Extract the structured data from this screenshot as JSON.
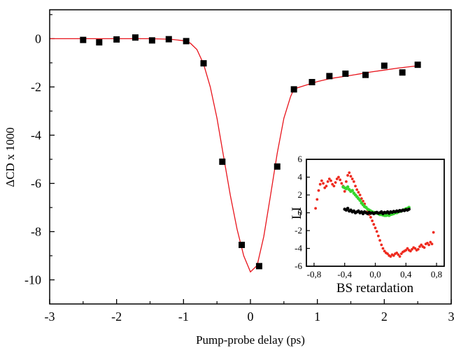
{
  "chart_data": [
    {
      "type": "scatter",
      "xlabel": "Pump-probe delay (ps)",
      "ylabel": "ΔCD x 1000",
      "xlim": [
        -3,
        3
      ],
      "ylim": [
        -11,
        1.2
      ],
      "xticks": [
        -3,
        -2,
        -1,
        0,
        1,
        2,
        3
      ],
      "yticks": [
        0,
        -2,
        -4,
        -6,
        -8,
        -10
      ],
      "x_tick_labels": [
        "-3",
        "-2",
        "-1",
        "0",
        "1",
        "2",
        "3"
      ],
      "y_tick_labels": [
        "0",
        "-2",
        "-4",
        "-6",
        "-8",
        "-10"
      ],
      "series": [
        {
          "marker": "square",
          "color": "#000000",
          "x": [
            -2.5,
            -2.26,
            -2.0,
            -1.72,
            -1.47,
            -1.22,
            -0.96,
            -0.7,
            -0.42,
            -0.13,
            0.13,
            0.4,
            0.65,
            0.92,
            1.18,
            1.42,
            1.72,
            2.0,
            2.27,
            2.5
          ],
          "y": [
            -0.05,
            -0.15,
            -0.03,
            0.05,
            -0.07,
            -0.02,
            -0.1,
            -1.02,
            -5.1,
            -8.55,
            -9.43,
            -5.3,
            -2.1,
            -1.8,
            -1.55,
            -1.45,
            -1.5,
            -1.12,
            -1.4,
            -1.08
          ]
        },
        {
          "type": "line",
          "color": "#e8131b",
          "x": [
            -3.0,
            -2.5,
            -2.0,
            -1.5,
            -1.2,
            -1.0,
            -0.9,
            -0.8,
            -0.7,
            -0.6,
            -0.5,
            -0.4,
            -0.3,
            -0.2,
            -0.1,
            0.0,
            0.1,
            0.2,
            0.3,
            0.4,
            0.5,
            0.6,
            0.65,
            0.8,
            1.0,
            1.2,
            1.5,
            1.8,
            2.0,
            2.2,
            2.5
          ],
          "y": [
            0.0,
            0.0,
            0.0,
            0.0,
            -0.02,
            -0.08,
            -0.18,
            -0.45,
            -1.05,
            -2.0,
            -3.3,
            -4.9,
            -6.5,
            -7.9,
            -9.0,
            -9.67,
            -9.4,
            -8.2,
            -6.5,
            -4.75,
            -3.3,
            -2.4,
            -2.08,
            -1.95,
            -1.78,
            -1.65,
            -1.52,
            -1.38,
            -1.3,
            -1.22,
            -1.12
          ]
        }
      ]
    },
    {
      "type": "scatter",
      "xlabel": "BS retardation",
      "ylabel": "LI",
      "xlim": [
        -0.9,
        0.9
      ],
      "ylim": [
        -6,
        6
      ],
      "xticks": [
        -0.8,
        -0.4,
        0.0,
        0.4,
        0.8
      ],
      "yticks": [
        6,
        4,
        2,
        0,
        -2,
        -4,
        -6
      ],
      "x_tick_labels": [
        "-0,8",
        "-0,4",
        "0,0",
        "0,4",
        "0,8"
      ],
      "y_tick_labels": [
        "6",
        "4",
        "2",
        "0",
        "-2",
        "-4",
        "-6"
      ],
      "series": [
        {
          "color": "#ee2a1e",
          "x": [
            -0.78,
            -0.76,
            -0.74,
            -0.72,
            -0.7,
            -0.68,
            -0.66,
            -0.64,
            -0.62,
            -0.6,
            -0.58,
            -0.56,
            -0.54,
            -0.52,
            -0.5,
            -0.48,
            -0.46,
            -0.44,
            -0.42,
            -0.4,
            -0.38,
            -0.36,
            -0.34,
            -0.32,
            -0.3,
            -0.28,
            -0.26,
            -0.24,
            -0.22,
            -0.2,
            -0.18,
            -0.16,
            -0.14,
            -0.12,
            -0.1,
            -0.08,
            -0.06,
            -0.04,
            -0.02,
            0.0,
            0.02,
            0.04,
            0.06,
            0.08,
            0.1,
            0.12,
            0.14,
            0.16,
            0.18,
            0.2,
            0.22,
            0.24,
            0.26,
            0.28,
            0.3,
            0.32,
            0.34,
            0.36,
            0.38,
            0.4,
            0.42,
            0.44,
            0.46,
            0.48,
            0.5,
            0.52,
            0.54,
            0.56,
            0.58,
            0.6,
            0.62,
            0.64,
            0.66,
            0.68,
            0.7,
            0.72,
            0.74,
            0.76
          ],
          "y": [
            0.5,
            1.5,
            2.5,
            3.2,
            3.6,
            3.3,
            2.8,
            3.0,
            3.5,
            3.8,
            3.6,
            3.2,
            3.0,
            3.4,
            3.8,
            4.0,
            3.7,
            3.3,
            3.0,
            2.4,
            3.5,
            4.2,
            4.5,
            4.1,
            3.8,
            3.5,
            3.0,
            2.6,
            2.3,
            2.0,
            1.6,
            1.3,
            1.0,
            0.6,
            0.2,
            -0.2,
            -0.5,
            -0.9,
            -1.3,
            -1.7,
            -2.1,
            -2.6,
            -3.1,
            -3.6,
            -4.0,
            -4.3,
            -4.5,
            -4.6,
            -4.8,
            -4.9,
            -4.7,
            -4.8,
            -4.6,
            -4.5,
            -4.7,
            -4.9,
            -4.6,
            -4.4,
            -4.3,
            -4.2,
            -4.0,
            -4.2,
            -4.3,
            -4.1,
            -3.9,
            -4.0,
            -4.2,
            -4.1,
            -3.8,
            -3.6,
            -3.8,
            -3.9,
            -3.5,
            -3.4,
            -3.6,
            -3.3,
            -3.5,
            -2.2
          ]
        },
        {
          "color": "#36d62e",
          "x": [
            -0.42,
            -0.4,
            -0.38,
            -0.36,
            -0.34,
            -0.32,
            -0.3,
            -0.28,
            -0.26,
            -0.24,
            -0.22,
            -0.2,
            -0.18,
            -0.16,
            -0.14,
            -0.12,
            -0.1,
            -0.08,
            -0.06,
            -0.04,
            -0.02,
            0.0,
            0.02,
            0.04,
            0.06,
            0.08,
            0.1,
            0.12,
            0.14,
            0.16,
            0.18,
            0.2,
            0.22,
            0.24,
            0.26,
            0.28,
            0.3,
            0.32,
            0.34,
            0.36,
            0.38,
            0.4,
            0.42,
            0.44
          ],
          "y": [
            2.9,
            2.8,
            2.7,
            2.9,
            2.6,
            2.4,
            2.5,
            2.2,
            2.0,
            1.8,
            1.6,
            1.4,
            1.1,
            0.9,
            0.7,
            0.6,
            0.4,
            0.3,
            0.2,
            0.1,
            0.05,
            0.0,
            -0.05,
            -0.1,
            -0.2,
            -0.2,
            -0.25,
            -0.3,
            -0.3,
            -0.25,
            -0.3,
            -0.2,
            -0.15,
            -0.1,
            0.0,
            0.0,
            0.1,
            0.15,
            0.2,
            0.3,
            0.35,
            0.45,
            0.5,
            0.6
          ]
        },
        {
          "color": "#000000",
          "x": [
            -0.4,
            -0.38,
            -0.36,
            -0.34,
            -0.32,
            -0.3,
            -0.28,
            -0.26,
            -0.24,
            -0.22,
            -0.2,
            -0.18,
            -0.16,
            -0.14,
            -0.12,
            -0.1,
            -0.08,
            -0.06,
            -0.04,
            -0.02,
            0.0,
            0.02,
            0.04,
            0.06,
            0.08,
            0.1,
            0.12,
            0.14,
            0.16,
            0.18,
            0.2,
            0.22,
            0.24,
            0.26,
            0.28,
            0.3,
            0.32,
            0.34,
            0.36,
            0.38,
            0.4,
            0.42,
            0.44
          ],
          "y": [
            0.4,
            0.3,
            0.5,
            0.2,
            0.3,
            0.1,
            0.2,
            0.0,
            0.1,
            0.2,
            0.0,
            0.1,
            -0.1,
            0.1,
            0.0,
            -0.1,
            0.05,
            -0.05,
            0.0,
            -0.1,
            0.0,
            0.05,
            -0.05,
            0.0,
            0.1,
            -0.1,
            0.05,
            0.0,
            0.1,
            -0.05,
            0.1,
            0.05,
            0.15,
            0.1,
            0.2,
            0.15,
            0.25,
            0.2,
            0.3,
            0.25,
            0.35,
            0.3,
            0.4
          ]
        }
      ]
    }
  ]
}
